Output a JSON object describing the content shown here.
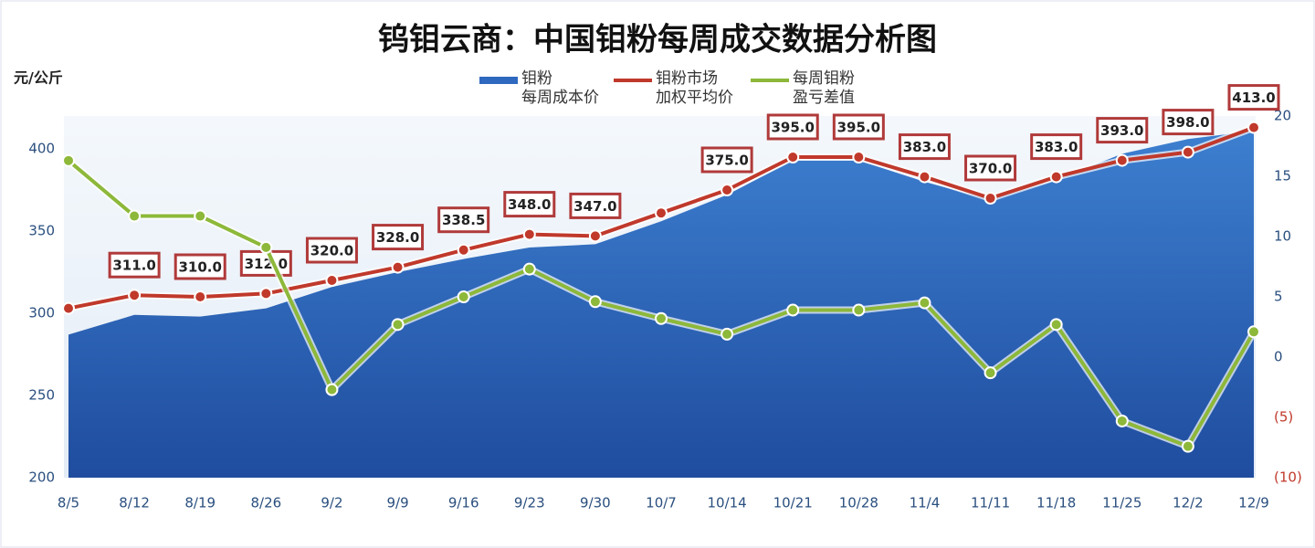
{
  "chart_data": {
    "type": "area-line",
    "title": "钨钼云商：中国钼粉每周成交数据分析图",
    "ylabel": "元/公斤",
    "categories": [
      "8/5",
      "8/12",
      "8/19",
      "8/26",
      "9/2",
      "9/9",
      "9/16",
      "9/23",
      "9/30",
      "10/7",
      "10/14",
      "10/21",
      "10/28",
      "11/4",
      "11/11",
      "11/18",
      "11/25",
      "12/2",
      "12/9"
    ],
    "series": [
      {
        "name": "钼粉\n每周成本价",
        "color": "#2f68bf",
        "kind": "area",
        "values": [
          287,
          299,
          298,
          303,
          316,
          325,
          333,
          340,
          342,
          356,
          372,
          393,
          393,
          380,
          369,
          381,
          397,
          406,
          411
        ]
      },
      {
        "name": "钼粉市场\n加权平均价",
        "color": "#c0392b",
        "kind": "line",
        "values": [
          303,
          311,
          310,
          312,
          320,
          328,
          338.5,
          348,
          347,
          361,
          375,
          395,
          395,
          383,
          370,
          383,
          393,
          398,
          413
        ],
        "value_labels": [
          null,
          "311.0",
          "310.0",
          "312.0",
          "320.0",
          "328.0",
          "338.5",
          "348.0",
          "347.0",
          null,
          "375.0",
          "395.0",
          "395.0",
          "383.0",
          "370.0",
          "383.0",
          "393.0",
          "398.0",
          "413.0"
        ]
      },
      {
        "name": "每周钼粉\n盈亏差值",
        "color": "#8db83a",
        "kind": "line",
        "axis": "y2",
        "values": [
          16.3,
          11.7,
          11.7,
          9.1,
          -2.7,
          2.7,
          5.0,
          7.3,
          4.6,
          3.2,
          1.9,
          3.9,
          3.9,
          4.5,
          -1.3,
          2.7,
          -5.3,
          -7.4,
          2.1
        ]
      }
    ],
    "ylim": [
      200,
      420
    ],
    "yticks": [
      200,
      250,
      300,
      350,
      400
    ],
    "y2lim": [
      -10,
      20
    ],
    "y2ticks": [
      {
        "value": -10,
        "label": "(10)"
      },
      {
        "value": -5,
        "label": "(5)"
      },
      0,
      5,
      10,
      15,
      20
    ]
  }
}
